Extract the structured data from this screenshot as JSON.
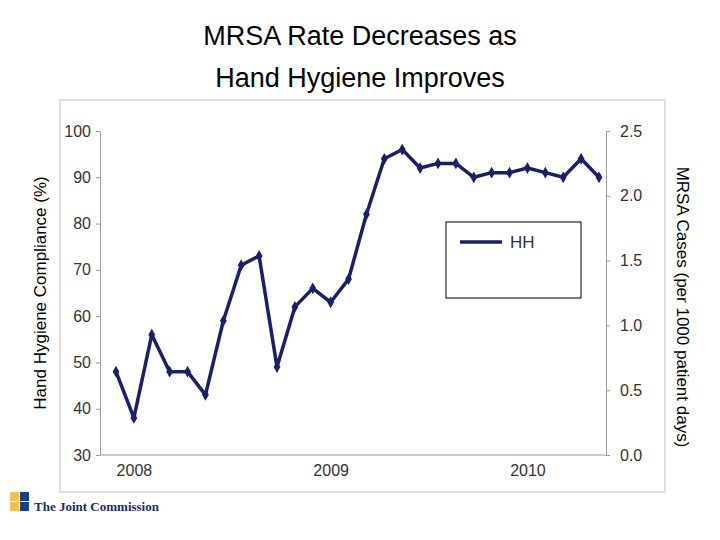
{
  "chart_data": {
    "type": "line",
    "title": "MRSA Rate Decreases as Hand Hygiene Improves",
    "y_label": "Hand Hygiene Compliance (%)",
    "y2_label": "MRSA Cases (per 1000 patient days)",
    "footer": "The Joint Commission",
    "categories": [
      null,
      "2008",
      null,
      null,
      null,
      null,
      null,
      null,
      null,
      null,
      null,
      null,
      "2009",
      null,
      null,
      null,
      null,
      null,
      null,
      null,
      null,
      null,
      null,
      "2010",
      null,
      null,
      null,
      null
    ],
    "series": [
      {
        "name": "HH",
        "color": "#1b1f6b",
        "marker": "diamond",
        "values": [
          48,
          38,
          56,
          48,
          48,
          43,
          59,
          71,
          73,
          49,
          62,
          66,
          63,
          68,
          82,
          94,
          96,
          92,
          93,
          93,
          90,
          91,
          91,
          92,
          91,
          90,
          94,
          90
        ]
      }
    ],
    "ylim": [
      30,
      100
    ],
    "yticks": [
      30,
      40,
      50,
      60,
      70,
      80,
      90,
      100
    ],
    "y2lim": [
      0,
      2.5
    ],
    "y2ticks": [
      {
        "value": 0,
        "label": "0.0"
      },
      0.5,
      {
        "value": 1,
        "label": "1.0"
      },
      1.5,
      {
        "value": 2,
        "label": "2.0"
      },
      2.5
    ],
    "legend": "right",
    "grid": false
  }
}
